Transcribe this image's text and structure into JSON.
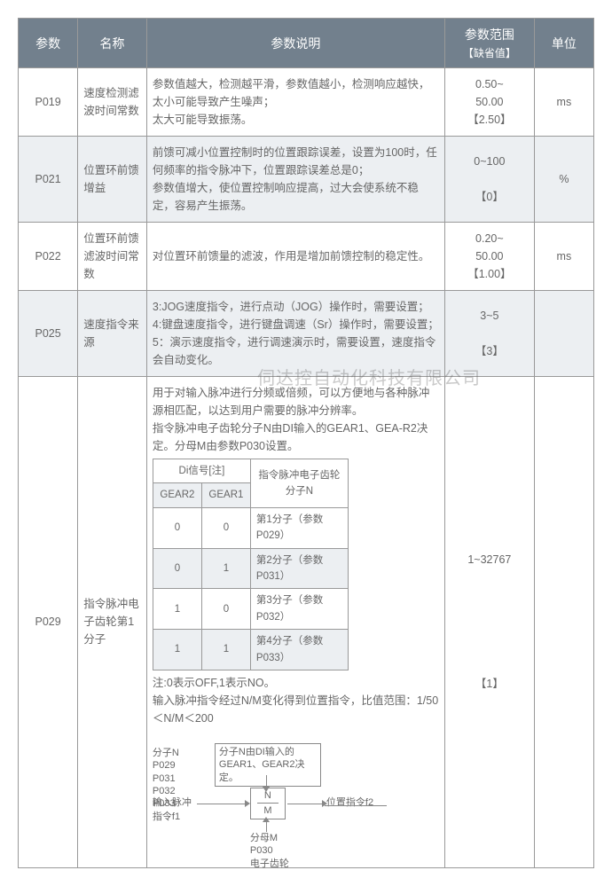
{
  "watermark": "伺达控自动化科技有限公司",
  "headers": {
    "param": "参数",
    "name": "名称",
    "desc": "参数说明",
    "range": "参数范围",
    "range_sub": "【缺省值】",
    "unit": "单位"
  },
  "rows": [
    {
      "param": "P019",
      "name": "速度检测滤波时间常数",
      "desc": "参数值越大，检测越平滑，参数值越小，检测响应越快，太小可能导致产生噪声；\n太大可能导致振荡。",
      "range": "0.50~\n50.00\n【2.50】",
      "unit": "ms",
      "shaded": false
    },
    {
      "param": "P021",
      "name": "位置环前馈增益",
      "desc": "前馈可减小位置控制时的位置跟踪误差，设置为100时，任何频率的指令脉冲下，位置跟踪误差总是0；\n参数值增大，使位置控制响应提高，过大会使系统不稳定，容易产生振荡。",
      "range": "0~100\n\n【0】",
      "unit": "%",
      "shaded": true
    },
    {
      "param": "P022",
      "name": "位置环前馈滤波时间常数",
      "desc": "对位置环前馈量的滤波，作用是增加前馈控制的稳定性。",
      "range": "0.20~\n50.00\n【1.00】",
      "unit": "ms",
      "shaded": false
    },
    {
      "param": "P025",
      "name": "速度指令来源",
      "desc": "3:JOG速度指令，进行点动（JOG）操作时，需要设置；\n4:键盘速度指令，进行键盘调速（Sr）操作时，需要设置；\n5：演示速度指令，进行调速演示时，需要设置，速度指令会自动变化。",
      "range": "3~5\n\n【3】",
      "unit": "",
      "shaded": true
    }
  ],
  "p029": {
    "param": "P029",
    "name": "指令脉冲电子齿轮第1分子",
    "intro": "用于对输入脉冲进行分频或倍频，可以方便地与各种脉冲源相匹配，以达到用户需要的脉冲分辨率。\n指令脉冲电子齿轮分子N由DI输入的GEAR1、GEA-R2决定。分母M由参数P030设置。",
    "di_table": {
      "head_di": "Di信号[注]",
      "head_n": "指令脉冲电子齿轮分子N",
      "gear2": "GEAR2",
      "gear1": "GEAR1",
      "rows": [
        {
          "g2": "0",
          "g1": "0",
          "n": "第1分子（参数P029）",
          "shaded": false
        },
        {
          "g2": "0",
          "g1": "1",
          "n": "第2分子（参数P031）",
          "shaded": true
        },
        {
          "g2": "1",
          "g1": "0",
          "n": "第3分子（参数P032）",
          "shaded": false
        },
        {
          "g2": "1",
          "g1": "1",
          "n": "第4分子（参数P033）",
          "shaded": true
        }
      ]
    },
    "note": "注:0表示OFF,1表示NO。\n输入脉冲指令经过N/M变化得到位置指令，比值范围：1/50＜N/M＜200",
    "range": "1~32767\n\n\n\n\n\n\n【1】",
    "unit": "",
    "diagram": {
      "n_labels": "分子N\nP029\nP031\nP032\nP033",
      "box_text": "分子N由DI输入的GEAR1、GEAR2决定。",
      "in_pulse": "输入脉冲",
      "cmd_f1": "指令f1",
      "frac_n": "N",
      "frac_m": "M",
      "pos_cmd": "位置指令f2",
      "m_labels": "分母M\nP030\n电子齿轮"
    }
  },
  "colors": {
    "header_bg": "#72808d",
    "header_fg": "#ffffff",
    "border": "#999999",
    "text": "#666666",
    "shaded_bg": "#eceff2",
    "page_bg": "#ffffff"
  }
}
